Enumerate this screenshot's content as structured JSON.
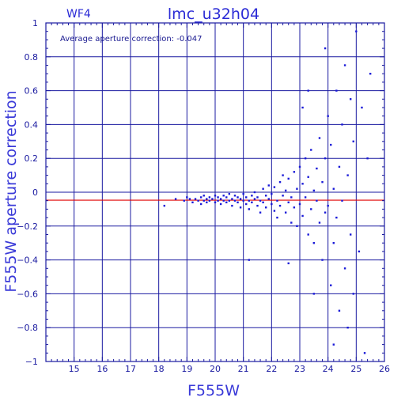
{
  "chart_data": {
    "type": "scatter",
    "title": "lmc_u32h04",
    "subtitle": "WF4",
    "annotation": "Average aperture correction: -0.047",
    "xlabel": "F555W",
    "ylabel": "F555W aperture correction",
    "xlim": [
      14,
      26
    ],
    "ylim": [
      -1,
      1
    ],
    "x_ticks": [
      15,
      16,
      17,
      18,
      19,
      20,
      21,
      22,
      23,
      24,
      25,
      26
    ],
    "y_ticks": [
      -1,
      -0.8,
      -0.6,
      -0.4,
      -0.2,
      0,
      0.2,
      0.4,
      0.6,
      0.8,
      1
    ],
    "y_tick_labels": [
      "−1",
      "−0.8",
      "−0.6",
      "−0.4",
      "−0.2",
      "0",
      "0.2",
      "0.4",
      "0.6",
      "0.8",
      "1"
    ],
    "grid": true,
    "reference_lines": [
      {
        "y": -0.047,
        "color": "#e00000"
      }
    ],
    "colors": {
      "axes": "#1a1aa0",
      "grid": "#1a1aa0",
      "points": "#1a1ad8",
      "reference": "#e00000"
    },
    "series": [
      {
        "marker": "square",
        "points": [
          [
            18.2,
            -0.08
          ],
          [
            18.6,
            -0.04
          ],
          [
            18.9,
            -0.05
          ],
          [
            19.0,
            -0.03
          ],
          [
            19.1,
            -0.04
          ],
          [
            19.2,
            -0.06
          ],
          [
            19.3,
            -0.04
          ],
          [
            19.4,
            -0.05
          ],
          [
            19.5,
            -0.03
          ],
          [
            19.5,
            -0.07
          ],
          [
            19.6,
            -0.05
          ],
          [
            19.6,
            -0.02
          ],
          [
            19.7,
            -0.04
          ],
          [
            19.7,
            -0.06
          ],
          [
            19.8,
            -0.03
          ],
          [
            19.8,
            -0.05
          ],
          [
            19.9,
            -0.04
          ],
          [
            20.0,
            -0.06
          ],
          [
            20.0,
            -0.02
          ],
          [
            20.1,
            -0.05
          ],
          [
            20.1,
            -0.03
          ],
          [
            20.2,
            -0.04
          ],
          [
            20.2,
            -0.07
          ],
          [
            20.3,
            -0.05
          ],
          [
            20.3,
            -0.02
          ],
          [
            20.4,
            -0.06
          ],
          [
            20.4,
            -0.03
          ],
          [
            20.5,
            -0.05
          ],
          [
            20.5,
            -0.01
          ],
          [
            20.6,
            -0.04
          ],
          [
            20.6,
            -0.08
          ],
          [
            20.7,
            -0.05
          ],
          [
            20.7,
            -0.02
          ],
          [
            20.8,
            -0.06
          ],
          [
            20.8,
            -0.03
          ],
          [
            20.9,
            -0.04
          ],
          [
            20.9,
            -0.09
          ],
          [
            21.0,
            -0.05
          ],
          [
            21.0,
            -0.01
          ],
          [
            21.1,
            -0.07
          ],
          [
            21.1,
            -0.03
          ],
          [
            21.2,
            -0.05
          ],
          [
            21.2,
            -0.1
          ],
          [
            21.3,
            -0.02
          ],
          [
            21.3,
            -0.06
          ],
          [
            21.4,
            -0.04
          ],
          [
            21.4,
            0.0
          ],
          [
            21.5,
            -0.08
          ],
          [
            21.5,
            -0.03
          ],
          [
            21.6,
            -0.05
          ],
          [
            21.6,
            -0.12
          ],
          [
            21.7,
            0.02
          ],
          [
            21.7,
            -0.06
          ],
          [
            21.8,
            -0.02
          ],
          [
            21.8,
            -0.09
          ],
          [
            21.9,
            -0.04
          ],
          [
            21.9,
            0.04
          ],
          [
            22.0,
            -0.07
          ],
          [
            22.0,
            -0.01
          ],
          [
            22.1,
            -0.11
          ],
          [
            22.1,
            0.03
          ],
          [
            22.2,
            -0.05
          ],
          [
            22.2,
            -0.15
          ],
          [
            22.3,
            0.06
          ],
          [
            22.3,
            -0.08
          ],
          [
            22.4,
            -0.02
          ],
          [
            22.4,
            0.1
          ],
          [
            22.5,
            -0.12
          ],
          [
            22.5,
            0.01
          ],
          [
            22.6,
            -0.06
          ],
          [
            22.6,
            0.08
          ],
          [
            22.7,
            -0.18
          ],
          [
            22.7,
            -0.03
          ],
          [
            22.8,
            0.12
          ],
          [
            22.8,
            -0.09
          ],
          [
            22.9,
            0.02
          ],
          [
            22.9,
            -0.2
          ],
          [
            23.0,
            0.15
          ],
          [
            23.0,
            -0.07
          ],
          [
            23.1,
            0.05
          ],
          [
            23.1,
            -0.14
          ],
          [
            23.2,
            0.2
          ],
          [
            23.2,
            -0.03
          ],
          [
            23.3,
            -0.25
          ],
          [
            23.3,
            0.09
          ],
          [
            23.4,
            -0.1
          ],
          [
            23.4,
            0.25
          ],
          [
            23.5,
            0.01
          ],
          [
            23.5,
            -0.3
          ],
          [
            23.6,
            0.14
          ],
          [
            23.6,
            -0.05
          ],
          [
            23.7,
            0.32
          ],
          [
            23.7,
            -0.18
          ],
          [
            23.8,
            0.06
          ],
          [
            23.8,
            -0.4
          ],
          [
            23.9,
            0.2
          ],
          [
            23.9,
            -0.12
          ],
          [
            24.0,
            0.45
          ],
          [
            24.0,
            -0.08
          ],
          [
            24.1,
            -0.55
          ],
          [
            24.1,
            0.28
          ],
          [
            24.2,
            0.02
          ],
          [
            24.2,
            -0.3
          ],
          [
            24.3,
            0.6
          ],
          [
            24.3,
            -0.15
          ],
          [
            24.4,
            0.15
          ],
          [
            24.4,
            -0.7
          ],
          [
            24.5,
            0.4
          ],
          [
            24.5,
            -0.05
          ],
          [
            24.6,
            -0.45
          ],
          [
            24.6,
            0.75
          ],
          [
            24.7,
            0.1
          ],
          [
            24.7,
            -0.8
          ],
          [
            24.8,
            0.55
          ],
          [
            24.8,
            -0.25
          ],
          [
            24.9,
            0.3
          ],
          [
            24.9,
            -0.6
          ],
          [
            25.0,
            0.95
          ],
          [
            25.1,
            -0.35
          ],
          [
            25.2,
            0.5
          ],
          [
            25.3,
            -0.95
          ],
          [
            25.4,
            0.2
          ],
          [
            25.5,
            0.7
          ],
          [
            23.1,
            0.5
          ],
          [
            23.3,
            0.6
          ],
          [
            23.5,
            -0.6
          ],
          [
            23.9,
            0.85
          ],
          [
            24.2,
            -0.9
          ],
          [
            22.6,
            -0.42
          ],
          [
            21.2,
            -0.4
          ]
        ]
      }
    ]
  }
}
